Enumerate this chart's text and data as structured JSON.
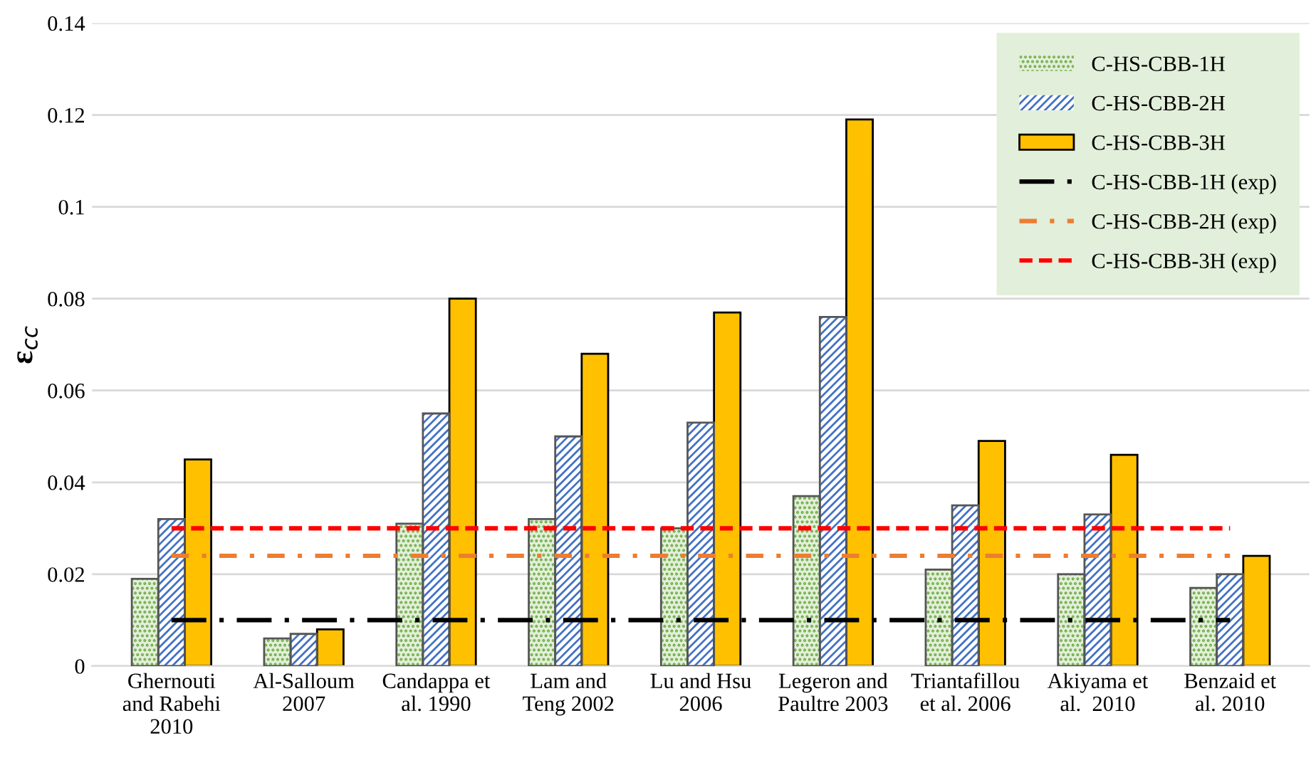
{
  "chart_data": {
    "type": "bar",
    "ylabel": "ε$_{cc}$",
    "categories": [
      "Ghernouti\nand Rabehi\n2010",
      "Al-Salloum\n2007",
      "Candappa et\nal. 1990",
      "Lam and\nTeng 2002",
      "Lu and Hsu\n2006",
      "Legeron and\nPaultre 2003",
      "Triantafillou\net al. 2006",
      "Akiyama et\nal.  2010",
      "Benzaid et\nal. 2010"
    ],
    "series": [
      {
        "name": "C-HS-CBB-1H",
        "color": "#e2efd9",
        "values": [
          0.019,
          0.006,
          0.031,
          0.032,
          0.03,
          0.037,
          0.021,
          0.02,
          0.017
        ]
      },
      {
        "name": "C-HS-CBB-2H",
        "color": "#4472c4",
        "values": [
          0.032,
          0.007,
          0.055,
          0.05,
          0.053,
          0.076,
          0.035,
          0.033,
          0.02
        ]
      },
      {
        "name": "C-HS-CBB-3H",
        "color": "#ffc000",
        "values": [
          0.045,
          0.008,
          0.08,
          0.068,
          0.077,
          0.119,
          0.049,
          0.046,
          0.024
        ]
      },
      {
        "name": "C-HS-CBB-1H (exp)",
        "type": "line",
        "color": "#000000",
        "line_style": "dashdot",
        "values": [
          0.01,
          0.01,
          0.01,
          0.01,
          0.01,
          0.01,
          0.01,
          0.01,
          0.01
        ]
      },
      {
        "name": "C-HS-CBB-2H (exp)",
        "type": "line",
        "color": "#ed7d31",
        "line_style": "dashdotdot",
        "values": [
          0.024,
          0.024,
          0.024,
          0.024,
          0.024,
          0.024,
          0.024,
          0.024,
          0.024
        ]
      },
      {
        "name": "C-HS-CBB-3H (exp)",
        "type": "line",
        "color": "#ff0000",
        "line_style": "dashed",
        "values": [
          0.03,
          0.03,
          0.03,
          0.03,
          0.03,
          0.03,
          0.03,
          0.03,
          0.03
        ]
      }
    ],
    "ylim": [
      0,
      0.14
    ],
    "yticks": [
      0,
      0.02,
      0.04,
      0.06,
      0.08,
      0.1,
      0.12,
      0.14
    ],
    "grid": "y",
    "legend": "top right"
  }
}
